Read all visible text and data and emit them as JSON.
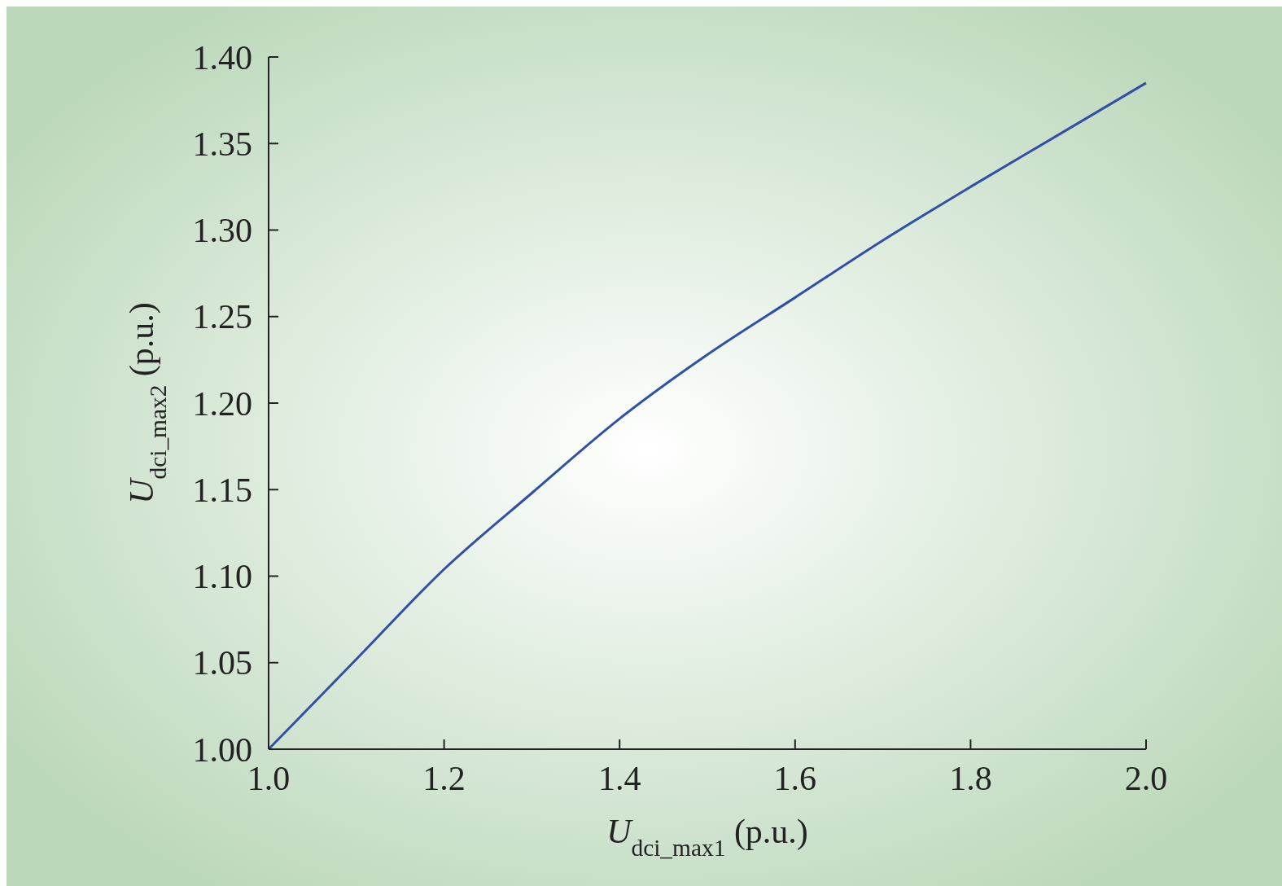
{
  "chart_data": {
    "type": "line",
    "xlabel": "U$_{dci_max1}$ (p.u.)",
    "ylabel": "U$_{dci_max2}$ (p.u.)",
    "x": [
      1.0,
      1.1,
      1.2,
      1.3,
      1.4,
      1.5,
      1.6,
      1.7,
      1.8,
      1.9,
      2.0
    ],
    "series": [
      {
        "color": "#3050a8",
        "values": [
          1.0,
          1.052,
          1.104,
          1.148,
          1.191,
          1.228,
          1.261,
          1.294,
          1.325,
          1.355,
          1.385
        ]
      }
    ],
    "xlim": [
      1.0,
      2.0
    ],
    "ylim": [
      1.0,
      1.4
    ],
    "xticks": [
      {
        "value": 1.0,
        "label": "1.0"
      },
      {
        "value": 1.2,
        "label": "1.2"
      },
      {
        "value": 1.4,
        "label": "1.4"
      },
      {
        "value": 1.6,
        "label": "1.6"
      },
      {
        "value": 1.8,
        "label": "1.8"
      },
      {
        "value": 2.0,
        "label": "2.0"
      }
    ],
    "yticks": [
      {
        "value": 1.0,
        "label": "1.00"
      },
      {
        "value": 1.05,
        "label": "1.05"
      },
      {
        "value": 1.1,
        "label": "1.10"
      },
      {
        "value": 1.15,
        "label": "1.15"
      },
      {
        "value": 1.2,
        "label": "1.20"
      },
      {
        "value": 1.25,
        "label": "1.25"
      },
      {
        "value": 1.3,
        "label": "1.30"
      },
      {
        "value": 1.35,
        "label": "1.35"
      },
      {
        "value": 1.4,
        "label": "1.40"
      }
    ]
  }
}
